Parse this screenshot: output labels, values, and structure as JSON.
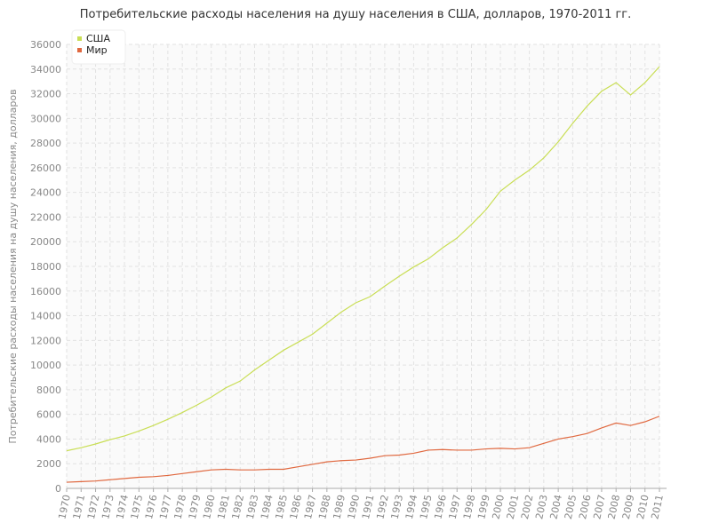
{
  "chart_data": {
    "type": "line",
    "title": "Потребительские расходы населения на душу населения в США, долларов, 1970-2011 гг.",
    "y_label": "Потребительские расходы населения на душу населения, долларов",
    "categories": [
      "1970",
      "1971",
      "1972",
      "1973",
      "1974",
      "1975",
      "1976",
      "1977",
      "1978",
      "1979",
      "1980",
      "1981",
      "1982",
      "1983",
      "1984",
      "1985",
      "1986",
      "1987",
      "1988",
      "1989",
      "1990",
      "1991",
      "1992",
      "1993",
      "1994",
      "1995",
      "1996",
      "1997",
      "1998",
      "1999",
      "2000",
      "2001",
      "2002",
      "2003",
      "2004",
      "2005",
      "2006",
      "2007",
      "2008",
      "2009",
      "2010",
      "2011"
    ],
    "series": [
      {
        "name": "США",
        "color": "#c9de55",
        "values": [
          3050,
          3300,
          3600,
          3950,
          4250,
          4650,
          5100,
          5600,
          6150,
          6750,
          7400,
          8150,
          8700,
          9600,
          10400,
          11200,
          11850,
          12500,
          13400,
          14300,
          15050,
          15550,
          16400,
          17200,
          17950,
          18600,
          19500,
          20300,
          21400,
          22600,
          24100,
          25000,
          25800,
          26800,
          28100,
          29600,
          31000,
          32200,
          32900,
          31900,
          32900,
          34200
        ]
      },
      {
        "name": "Мир",
        "color": "#e0683f",
        "values": [
          500,
          550,
          600,
          700,
          800,
          900,
          950,
          1050,
          1200,
          1350,
          1500,
          1550,
          1500,
          1500,
          1550,
          1550,
          1750,
          1950,
          2150,
          2250,
          2300,
          2450,
          2650,
          2700,
          2850,
          3100,
          3150,
          3100,
          3100,
          3200,
          3250,
          3200,
          3300,
          3650,
          4000,
          4200,
          4450,
          4900,
          5300,
          5100,
          5400,
          5850
        ]
      }
    ],
    "ylim": [
      0,
      36000
    ],
    "yticks": [
      0,
      2000,
      4000,
      6000,
      8000,
      10000,
      12000,
      14000,
      16000,
      18000,
      20000,
      22000,
      24000,
      26000,
      28000,
      30000,
      32000,
      34000,
      36000
    ],
    "grid": true,
    "legend": "top-left"
  }
}
